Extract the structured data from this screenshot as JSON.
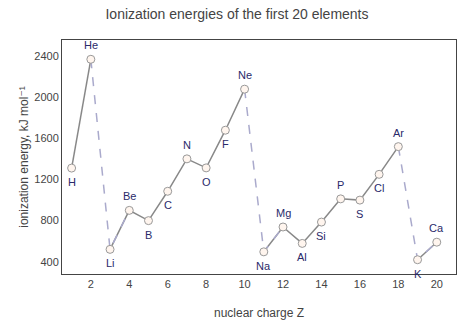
{
  "chart_data": {
    "type": "line",
    "title": "Ionization energies of the first 20 elements",
    "xlabel": "nuclear charge Z",
    "ylabel": "ionization energy, kJ mol⁻¹",
    "xlim": [
      0.5,
      21
    ],
    "ylim": [
      280,
      2560
    ],
    "xticks": [
      2,
      4,
      6,
      8,
      10,
      12,
      14,
      16,
      18,
      20
    ],
    "yticks": [
      400,
      800,
      1200,
      1600,
      2000,
      2400
    ],
    "grid": false,
    "series": [
      {
        "type": "line",
        "line_style": "solid",
        "color": "#888888",
        "x": [
          1,
          2
        ],
        "values": [
          1312,
          2372
        ]
      },
      {
        "type": "line",
        "line_style": "solid",
        "color": "#888888",
        "x": [
          3,
          4,
          5,
          6,
          7,
          8,
          9,
          10
        ],
        "values": [
          520,
          900,
          800,
          1086,
          1402,
          1314,
          1681,
          2081
        ]
      },
      {
        "type": "line",
        "line_style": "solid",
        "color": "#888888",
        "x": [
          11,
          12,
          13,
          14,
          15,
          16,
          17,
          18
        ],
        "values": [
          496,
          738,
          578,
          786,
          1012,
          1000,
          1251,
          1521
        ]
      },
      {
        "type": "line",
        "line_style": "solid",
        "color": "#888888",
        "x": [
          19,
          20
        ],
        "values": [
          419,
          590
        ]
      },
      {
        "type": "line",
        "line_style": "dashed",
        "color": "#aaaacc",
        "x": [
          2,
          3,
          4
        ],
        "values": [
          2372,
          520,
          900
        ]
      },
      {
        "type": "line",
        "line_style": "dashed",
        "color": "#aaaacc",
        "x": [
          10,
          11,
          12
        ],
        "values": [
          2081,
          496,
          738
        ]
      },
      {
        "type": "line",
        "line_style": "dashed",
        "color": "#aaaacc",
        "x": [
          18,
          19,
          20
        ],
        "values": [
          1521,
          419,
          590
        ]
      },
      {
        "type": "scatter",
        "line_style": "none",
        "marker": "circle",
        "color": "#fff5ee",
        "x": [
          1,
          2,
          3,
          4,
          5,
          6,
          7,
          8,
          9,
          10,
          11,
          12,
          13,
          14,
          15,
          16,
          17,
          18,
          19,
          20
        ],
        "values": [
          1312,
          2372,
          520,
          900,
          800,
          1086,
          1402,
          1314,
          1681,
          2081,
          496,
          738,
          578,
          786,
          1012,
          1000,
          1251,
          1521,
          419,
          590
        ]
      }
    ],
    "annotations": [
      {
        "text": "H",
        "x": 1,
        "y": 1312
      },
      {
        "text": "He",
        "x": 2,
        "y": 2372
      },
      {
        "text": "Li",
        "x": 3,
        "y": 520
      },
      {
        "text": "Be",
        "x": 4,
        "y": 900
      },
      {
        "text": "B",
        "x": 5,
        "y": 800
      },
      {
        "text": "C",
        "x": 6,
        "y": 1086
      },
      {
        "text": "N",
        "x": 7,
        "y": 1402
      },
      {
        "text": "O",
        "x": 8,
        "y": 1314
      },
      {
        "text": "F",
        "x": 9,
        "y": 1681
      },
      {
        "text": "Ne",
        "x": 10,
        "y": 2081
      },
      {
        "text": "Na",
        "x": 11,
        "y": 496
      },
      {
        "text": "Mg",
        "x": 12,
        "y": 738
      },
      {
        "text": "Al",
        "x": 13,
        "y": 578
      },
      {
        "text": "Si",
        "x": 14,
        "y": 786
      },
      {
        "text": "P",
        "x": 15,
        "y": 1012
      },
      {
        "text": "S",
        "x": 16,
        "y": 1000
      },
      {
        "text": "Cl",
        "x": 17,
        "y": 1251
      },
      {
        "text": "Ar",
        "x": 18,
        "y": 1521
      },
      {
        "text": "K",
        "x": 19,
        "y": 419
      },
      {
        "text": "Ca",
        "x": 20,
        "y": 590
      }
    ]
  }
}
